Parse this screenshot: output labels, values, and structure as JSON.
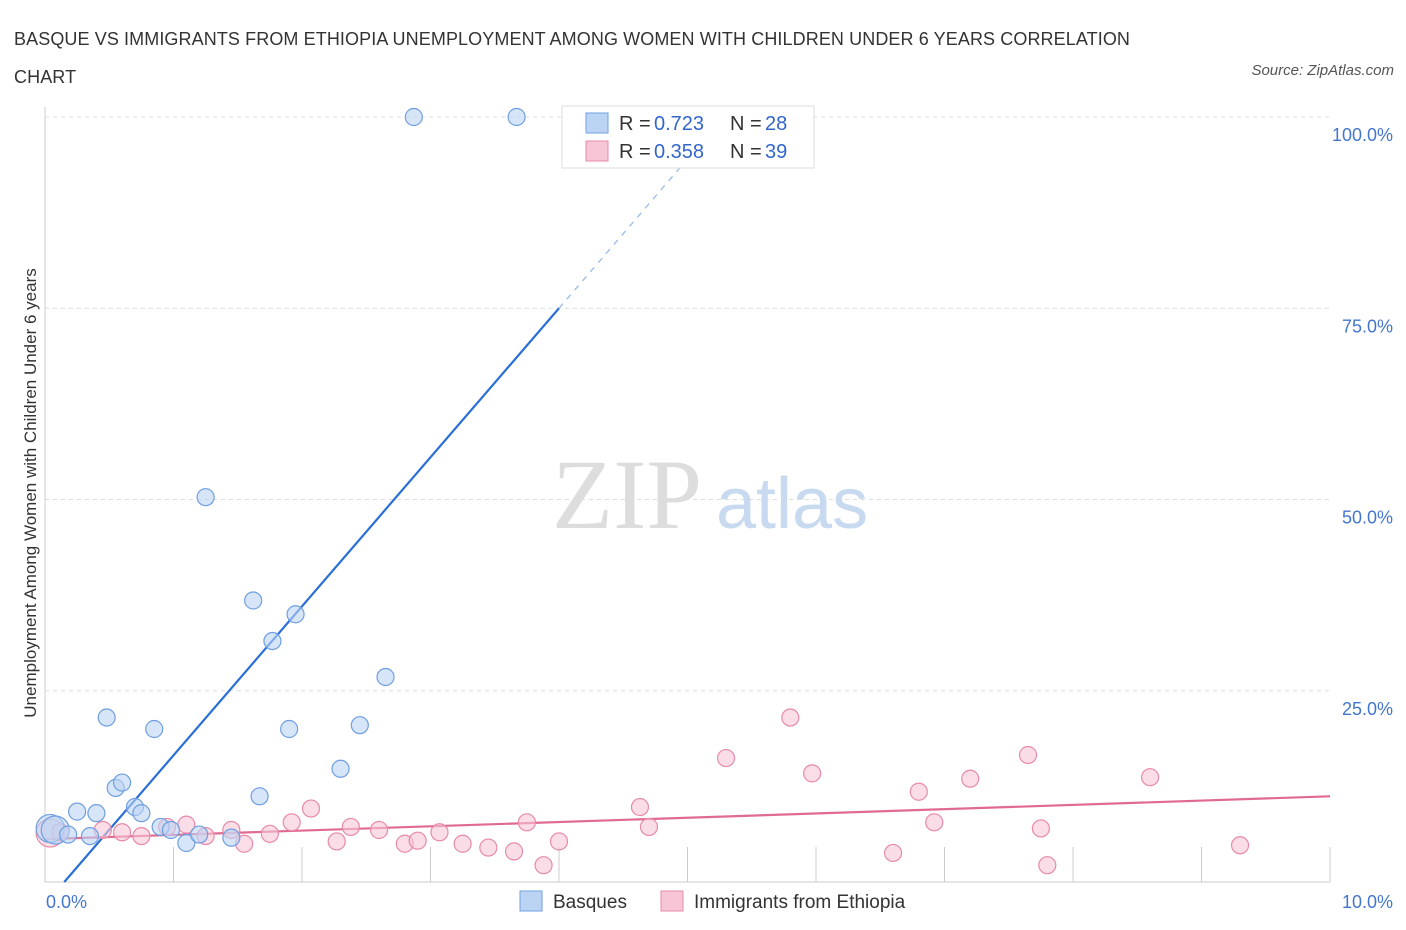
{
  "chart_data": {
    "type": "scatter",
    "title": "BASQUE VS IMMIGRANTS FROM ETHIOPIA UNEMPLOYMENT AMONG WOMEN WITH CHILDREN UNDER 6 YEARS CORRELATION CHART",
    "source": "Source: ZipAtlas.com",
    "xlabel": "",
    "ylabel": "Unemployment Among Women with Children Under 6 years",
    "xlim": [
      0,
      10
    ],
    "ylim": [
      0,
      100
    ],
    "x_tick_labels": [
      {
        "value": 0,
        "label": "0.0%"
      },
      {
        "value": 10,
        "label": "10.0%"
      }
    ],
    "y_tick_labels": [
      {
        "value": 25,
        "label": "25.0%"
      },
      {
        "value": 50,
        "label": "50.0%"
      },
      {
        "value": 75,
        "label": "75.0%"
      },
      {
        "value": 100,
        "label": "100.0%"
      }
    ],
    "watermark": {
      "zip": "ZIP",
      "atlas": "atlas"
    },
    "legend": [
      {
        "r_label": "R =",
        "r_value": "0.723",
        "n_label": "N =",
        "n_value": "28"
      },
      {
        "r_label": "R =",
        "r_value": "0.358",
        "n_label": "N =",
        "n_value": "39"
      }
    ],
    "series": [
      {
        "name": "Basques",
        "color": "#6f9fe0",
        "fill": "#bcd4f4",
        "line_color": "#2a6fd6",
        "points": [
          [
            0.04,
            7.0
          ],
          [
            0.08,
            6.8
          ],
          [
            0.18,
            6.2
          ],
          [
            0.25,
            9.2
          ],
          [
            0.35,
            6.0
          ],
          [
            0.4,
            9.0
          ],
          [
            0.48,
            21.5
          ],
          [
            0.55,
            12.3
          ],
          [
            0.6,
            13.0
          ],
          [
            0.7,
            9.8
          ],
          [
            0.75,
            9.0
          ],
          [
            0.85,
            20.0
          ],
          [
            0.9,
            7.2
          ],
          [
            0.98,
            6.8
          ],
          [
            1.1,
            5.1
          ],
          [
            1.2,
            6.2
          ],
          [
            1.25,
            50.3
          ],
          [
            1.45,
            5.8
          ],
          [
            1.62,
            36.8
          ],
          [
            1.67,
            11.2
          ],
          [
            1.77,
            31.5
          ],
          [
            1.9,
            20.0
          ],
          [
            1.95,
            35.0
          ],
          [
            2.3,
            14.8
          ],
          [
            2.45,
            20.5
          ],
          [
            2.65,
            26.8
          ],
          [
            2.87,
            100.0
          ],
          [
            3.67,
            100.0
          ]
        ],
        "trend": {
          "x0": 0.15,
          "y0": 0.0,
          "x1": 4.0,
          "y1": 75.0,
          "x_dash_end": 5.0,
          "y_dash_end": 94.5
        }
      },
      {
        "name": "Immigrants from Ethiopia",
        "color": "#e88aaa",
        "fill": "#f7c6d6",
        "line_color": "#e06a92",
        "points": [
          [
            0.04,
            6.4
          ],
          [
            0.12,
            6.5
          ],
          [
            0.45,
            6.8
          ],
          [
            0.6,
            6.5
          ],
          [
            0.75,
            6.0
          ],
          [
            0.95,
            7.2
          ],
          [
            1.1,
            7.5
          ],
          [
            1.25,
            6.0
          ],
          [
            1.45,
            6.8
          ],
          [
            1.55,
            5.0
          ],
          [
            1.75,
            6.3
          ],
          [
            1.92,
            7.8
          ],
          [
            2.07,
            9.6
          ],
          [
            2.27,
            5.3
          ],
          [
            2.38,
            7.2
          ],
          [
            2.6,
            6.8
          ],
          [
            2.8,
            5.0
          ],
          [
            2.9,
            5.4
          ],
          [
            3.07,
            6.5
          ],
          [
            3.25,
            5.0
          ],
          [
            3.45,
            4.5
          ],
          [
            3.65,
            4.0
          ],
          [
            3.75,
            7.8
          ],
          [
            3.88,
            2.2
          ],
          [
            4.0,
            5.3
          ],
          [
            4.63,
            9.8
          ],
          [
            4.7,
            7.2
          ],
          [
            5.3,
            16.2
          ],
          [
            5.8,
            21.5
          ],
          [
            5.97,
            14.2
          ],
          [
            6.6,
            3.8
          ],
          [
            6.8,
            11.8
          ],
          [
            6.92,
            7.8
          ],
          [
            7.2,
            13.5
          ],
          [
            7.65,
            16.6
          ],
          [
            7.75,
            7.0
          ],
          [
            7.8,
            2.2
          ],
          [
            8.6,
            13.7
          ],
          [
            9.3,
            4.8
          ]
        ],
        "trend": {
          "x0": 0.0,
          "y0": 5.6,
          "x1": 10.0,
          "y1": 11.2
        }
      }
    ]
  }
}
